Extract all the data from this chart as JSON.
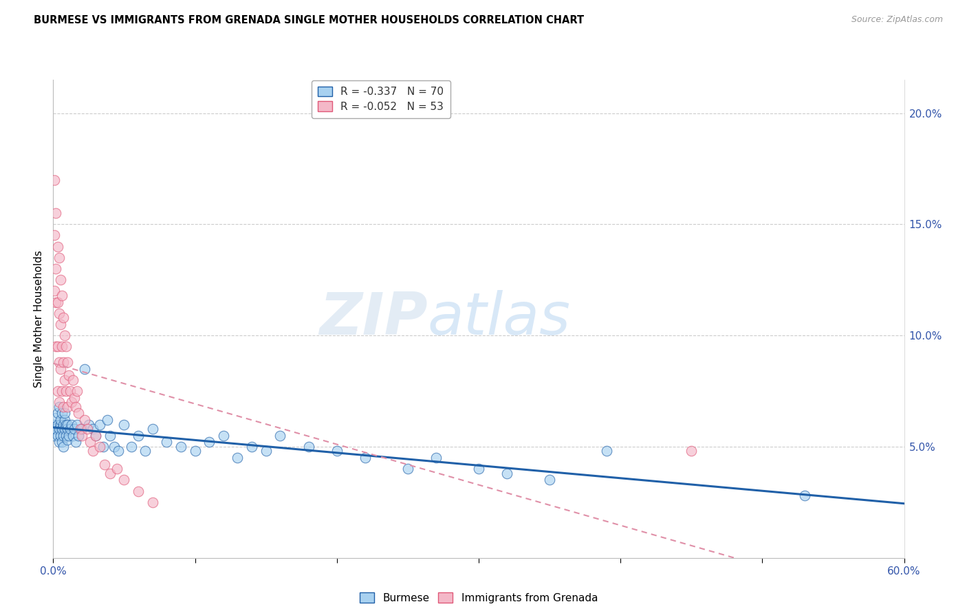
{
  "title": "BURMESE VS IMMIGRANTS FROM GRENADA SINGLE MOTHER HOUSEHOLDS CORRELATION CHART",
  "source": "Source: ZipAtlas.com",
  "ylabel": "Single Mother Households",
  "xmin": 0.0,
  "xmax": 0.6,
  "ymin": 0.0,
  "ymax": 0.215,
  "legend_r1": "R = -0.337",
  "legend_n1": "N = 70",
  "legend_r2": "R = -0.052",
  "legend_n2": "N = 53",
  "color_blue": "#a8d1f0",
  "color_pink": "#f4b8c8",
  "color_blue_line": "#2060a8",
  "color_pink_line": "#e05878",
  "color_pink_dash": "#e090a8",
  "watermark_zip": "ZIP",
  "watermark_atlas": "atlas",
  "burmese_x": [
    0.001,
    0.001,
    0.002,
    0.002,
    0.003,
    0.003,
    0.003,
    0.004,
    0.004,
    0.004,
    0.005,
    0.005,
    0.005,
    0.006,
    0.006,
    0.006,
    0.007,
    0.007,
    0.007,
    0.008,
    0.008,
    0.008,
    0.009,
    0.009,
    0.01,
    0.01,
    0.01,
    0.011,
    0.012,
    0.013,
    0.014,
    0.015,
    0.016,
    0.017,
    0.018,
    0.02,
    0.022,
    0.025,
    0.028,
    0.03,
    0.033,
    0.035,
    0.038,
    0.04,
    0.043,
    0.046,
    0.05,
    0.055,
    0.06,
    0.065,
    0.07,
    0.08,
    0.09,
    0.1,
    0.11,
    0.12,
    0.13,
    0.14,
    0.15,
    0.16,
    0.18,
    0.2,
    0.22,
    0.25,
    0.27,
    0.3,
    0.32,
    0.35,
    0.39,
    0.53
  ],
  "burmese_y": [
    0.06,
    0.055,
    0.058,
    0.063,
    0.055,
    0.06,
    0.065,
    0.058,
    0.052,
    0.068,
    0.06,
    0.055,
    0.062,
    0.058,
    0.065,
    0.052,
    0.06,
    0.055,
    0.05,
    0.062,
    0.058,
    0.065,
    0.055,
    0.06,
    0.058,
    0.053,
    0.06,
    0.055,
    0.058,
    0.06,
    0.055,
    0.058,
    0.052,
    0.06,
    0.055,
    0.058,
    0.085,
    0.06,
    0.058,
    0.055,
    0.06,
    0.05,
    0.062,
    0.055,
    0.05,
    0.048,
    0.06,
    0.05,
    0.055,
    0.048,
    0.058,
    0.052,
    0.05,
    0.048,
    0.052,
    0.055,
    0.045,
    0.05,
    0.048,
    0.055,
    0.05,
    0.048,
    0.045,
    0.04,
    0.045,
    0.04,
    0.038,
    0.035,
    0.048,
    0.028
  ],
  "grenada_x": [
    0.001,
    0.001,
    0.001,
    0.002,
    0.002,
    0.002,
    0.002,
    0.003,
    0.003,
    0.003,
    0.003,
    0.004,
    0.004,
    0.004,
    0.004,
    0.005,
    0.005,
    0.005,
    0.006,
    0.006,
    0.006,
    0.007,
    0.007,
    0.007,
    0.008,
    0.008,
    0.009,
    0.009,
    0.01,
    0.01,
    0.011,
    0.012,
    0.013,
    0.014,
    0.015,
    0.016,
    0.017,
    0.018,
    0.019,
    0.02,
    0.022,
    0.024,
    0.026,
    0.028,
    0.03,
    0.033,
    0.036,
    0.04,
    0.045,
    0.05,
    0.06,
    0.07,
    0.45
  ],
  "grenada_y": [
    0.17,
    0.145,
    0.12,
    0.155,
    0.13,
    0.115,
    0.095,
    0.14,
    0.115,
    0.095,
    0.075,
    0.135,
    0.11,
    0.088,
    0.07,
    0.125,
    0.105,
    0.085,
    0.118,
    0.095,
    0.075,
    0.108,
    0.088,
    0.068,
    0.1,
    0.08,
    0.095,
    0.075,
    0.088,
    0.068,
    0.082,
    0.075,
    0.07,
    0.08,
    0.072,
    0.068,
    0.075,
    0.065,
    0.058,
    0.055,
    0.062,
    0.058,
    0.052,
    0.048,
    0.055,
    0.05,
    0.042,
    0.038,
    0.04,
    0.035,
    0.03,
    0.025,
    0.048
  ]
}
